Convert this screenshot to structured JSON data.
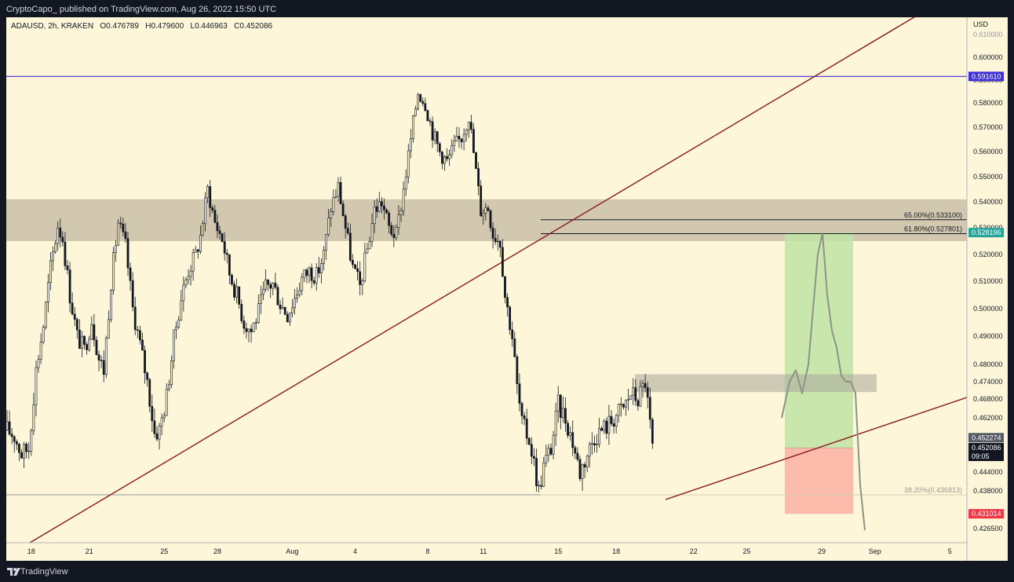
{
  "header": {
    "published_text": "CryptoCapo_ published on TradingView.com, Aug 26, 2022 15:50 UTC"
  },
  "symbol_info": {
    "symbol": "ADAUSD, 2h, KRAKEN",
    "open": "O0.476789",
    "high": "H0.479600",
    "low": "L0.446963",
    "close": "C0.452086"
  },
  "footer": {
    "brand": "TradingView"
  },
  "chart_data": {
    "type": "candlestick",
    "y_axis_unit": "USD",
    "x_tick_labels": [
      "18",
      "21",
      "25",
      "28",
      "Aug",
      "4",
      "8",
      "11",
      "15",
      "18",
      "22",
      "25",
      "29",
      "Sep",
      "5"
    ],
    "y_tick_labels": [
      "0.610000",
      "0.600000",
      "0.590000",
      "0.580000",
      "0.570000",
      "0.560000",
      "0.550000",
      "0.540000",
      "0.530000",
      "0.520000",
      "0.510000",
      "0.500000",
      "0.490000",
      "0.480000",
      "0.474000",
      "0.468000",
      "0.462000",
      "0.444000",
      "0.438000",
      "0.426500"
    ],
    "price_tags": [
      {
        "value": "0.591610",
        "color": "#3f2fd8"
      },
      {
        "value": "0.528196",
        "color": "#26a69a"
      },
      {
        "value": "0.452274",
        "color": "#555a66"
      },
      {
        "value": "0.452086",
        "color": "#131722"
      },
      {
        "value": "09:05",
        "color": "#131722"
      },
      {
        "value": "0.431014",
        "color": "#f23645"
      }
    ],
    "fib_levels": [
      {
        "label": "65.00%(0.533100)",
        "price": 0.5331
      },
      {
        "label": "61.80%(0.527801)",
        "price": 0.527801
      },
      {
        "label": "38.20%(0.436813)",
        "price": 0.436813
      }
    ],
    "horizontal_lines": [
      0.59161,
      0.4368
    ],
    "resistance_zone": [
      0.525,
      0.541
    ],
    "mini_zone": [
      0.4715,
      0.4755
    ],
    "trade_setup": {
      "entry": 0.452,
      "target": 0.5282,
      "stop": 0.431
    },
    "ohlc_last": {
      "open": 0.476789,
      "high": 0.4796,
      "low": 0.446963,
      "close": 0.452086
    },
    "close_path": [
      [
        0,
        0.458
      ],
      [
        3,
        0.456
      ],
      [
        6,
        0.45
      ],
      [
        9,
        0.452
      ],
      [
        12,
        0.478
      ],
      [
        15,
        0.494
      ],
      [
        18,
        0.515
      ],
      [
        21,
        0.531
      ],
      [
        23,
        0.526
      ],
      [
        26,
        0.505
      ],
      [
        29,
        0.49
      ],
      [
        32,
        0.485
      ],
      [
        35,
        0.496
      ],
      [
        38,
        0.482
      ],
      [
        40,
        0.478
      ],
      [
        43,
        0.51
      ],
      [
        46,
        0.532
      ],
      [
        49,
        0.523
      ],
      [
        52,
        0.5
      ],
      [
        55,
        0.487
      ],
      [
        58,
        0.474
      ],
      [
        61,
        0.457
      ],
      [
        63,
        0.458
      ],
      [
        66,
        0.469
      ],
      [
        69,
        0.489
      ],
      [
        72,
        0.504
      ],
      [
        75,
        0.514
      ],
      [
        78,
        0.52
      ],
      [
        80,
        0.527
      ],
      [
        83,
        0.545
      ],
      [
        86,
        0.532
      ],
      [
        89,
        0.526
      ],
      [
        92,
        0.513
      ],
      [
        95,
        0.505
      ],
      [
        98,
        0.495
      ],
      [
        101,
        0.492
      ],
      [
        104,
        0.499
      ],
      [
        107,
        0.508
      ],
      [
        110,
        0.509
      ],
      [
        113,
        0.502
      ],
      [
        116,
        0.498
      ],
      [
        119,
        0.504
      ],
      [
        122,
        0.511
      ],
      [
        125,
        0.514
      ],
      [
        128,
        0.512
      ],
      [
        131,
        0.52
      ],
      [
        134,
        0.538
      ],
      [
        137,
        0.546
      ],
      [
        140,
        0.53
      ],
      [
        143,
        0.515
      ],
      [
        146,
        0.508
      ],
      [
        149,
        0.522
      ],
      [
        152,
        0.537
      ],
      [
        155,
        0.54
      ],
      [
        158,
        0.53
      ],
      [
        161,
        0.527
      ],
      [
        164,
        0.545
      ],
      [
        167,
        0.565
      ],
      [
        170,
        0.585
      ],
      [
        173,
        0.58
      ],
      [
        176,
        0.568
      ],
      [
        179,
        0.56
      ],
      [
        182,
        0.556
      ],
      [
        185,
        0.562
      ],
      [
        188,
        0.566
      ],
      [
        191,
        0.575
      ],
      [
        194,
        0.552
      ],
      [
        196,
        0.537
      ],
      [
        199,
        0.538
      ],
      [
        201,
        0.528
      ],
      [
        204,
        0.525
      ],
      [
        206,
        0.505
      ],
      [
        209,
        0.49
      ],
      [
        211,
        0.472
      ],
      [
        213,
        0.46
      ],
      [
        216,
        0.455
      ],
      [
        218,
        0.447
      ],
      [
        220,
        0.438
      ],
      [
        222,
        0.446
      ],
      [
        225,
        0.452
      ],
      [
        228,
        0.466
      ],
      [
        231,
        0.462
      ],
      [
        234,
        0.454
      ],
      [
        237,
        0.444
      ],
      [
        240,
        0.45
      ],
      [
        243,
        0.456
      ],
      [
        246,
        0.458
      ],
      [
        249,
        0.46
      ],
      [
        252,
        0.463
      ],
      [
        255,
        0.465
      ],
      [
        258,
        0.47
      ],
      [
        261,
        0.468
      ],
      [
        264,
        0.474
      ],
      [
        267,
        0.452
      ]
    ],
    "projection_path": [
      [
        0,
        0.462
      ],
      [
        10,
        0.474
      ],
      [
        18,
        0.478
      ],
      [
        26,
        0.47
      ],
      [
        34,
        0.48
      ],
      [
        40,
        0.5
      ],
      [
        46,
        0.52
      ],
      [
        52,
        0.528
      ],
      [
        58,
        0.505
      ],
      [
        64,
        0.492
      ],
      [
        70,
        0.486
      ],
      [
        76,
        0.476
      ],
      [
        82,
        0.474
      ],
      [
        88,
        0.474
      ],
      [
        94,
        0.47
      ],
      [
        100,
        0.44
      ],
      [
        106,
        0.426
      ]
    ]
  }
}
